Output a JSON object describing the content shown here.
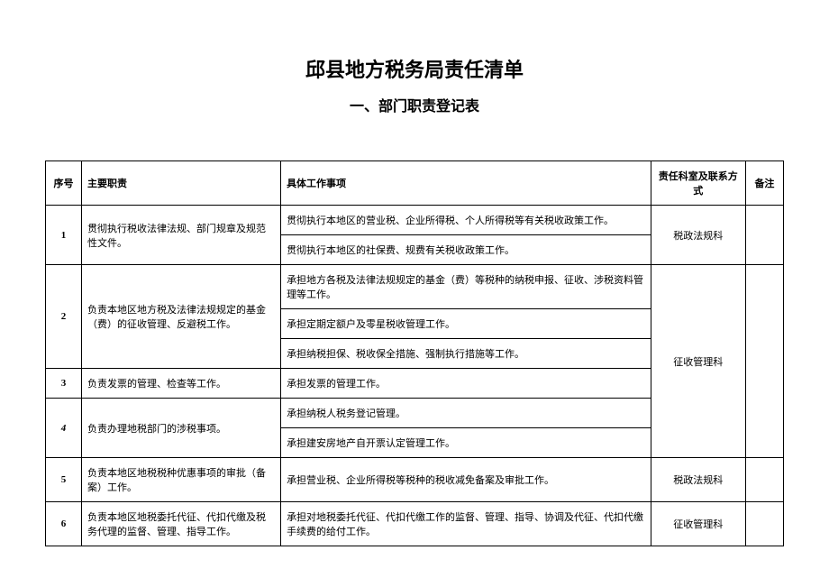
{
  "title_main": "邱县地方税务局责任清单",
  "title_sub": "一、部门职责登记表",
  "headers": {
    "index": "序号",
    "duty": "主要职责",
    "task": "具体工作事项",
    "dept": "责任科室及联系方式",
    "note": "备注"
  },
  "row1": {
    "index": "1",
    "duty": "贯彻执行税收法律法规、部门规章及规范性文件。",
    "task1": "贯彻执行本地区的营业税、企业所得税、个人所得税等有关税收政策工作。",
    "task2": "贯彻执行本地区的社保费、规费有关税收政策工作。",
    "dept": "税政法规科"
  },
  "row2": {
    "index": "2",
    "duty": "负责本地区地方税及法律法规规定的基金（费）的征收管理、反避税工作。",
    "task1": "承担地方各税及法律法规规定的基金（费）等税种的纳税申报、征收、涉税资料管理等工作。",
    "task2": "承担定期定额户及零星税收管理工作。",
    "task3": "承担纳税担保、税收保全措施、强制执行措施等工作。"
  },
  "row3": {
    "index": "3",
    "duty": "负责发票的管理、检查等工作。",
    "task": "承担发票的管理工作。"
  },
  "row4": {
    "index": "4",
    "duty": "负责办理地税部门的涉税事项。",
    "task1": "承担纳税人税务登记管理。",
    "task2": "承担建安房地产自开票认定管理工作。",
    "dept_2to4": "征收管理科"
  },
  "row5": {
    "index": "5",
    "duty": "负责本地区地税税种优惠事项的审批（备案）工作。",
    "task": "承担营业税、企业所得税等税种的税收减免备案及审批工作。",
    "dept": "税政法规科"
  },
  "row6": {
    "index": "6",
    "duty": "负责本地区地税委托代征、代扣代缴及税务代理的监督、管理、指导工作。",
    "task": "承担对地税委托代征、代扣代缴工作的监督、管理、指导、协调及代征、代扣代缴手续费的给付工作。",
    "dept": "征收管理科"
  }
}
